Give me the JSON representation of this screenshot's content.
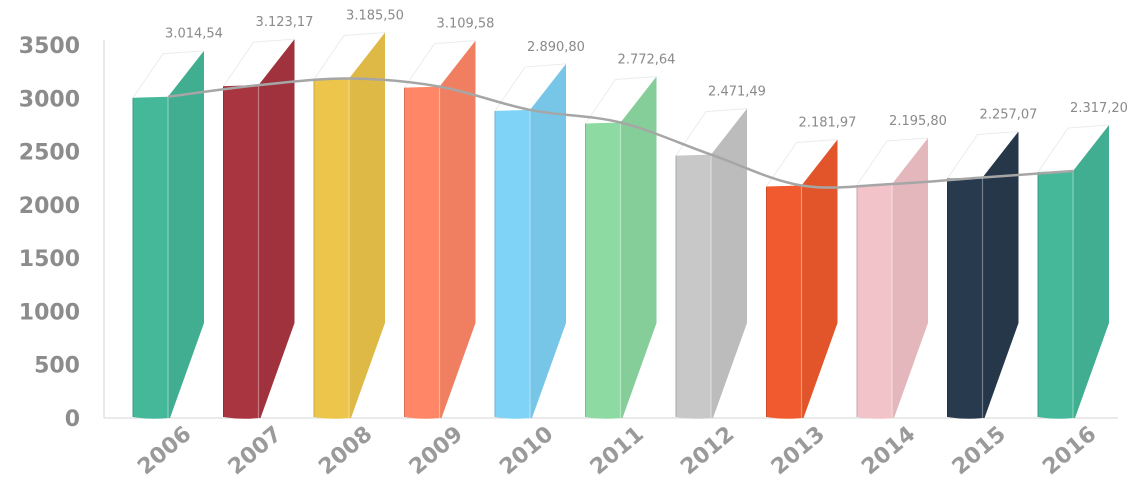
{
  "chart_data": {
    "type": "bar",
    "categories": [
      "2006",
      "2007",
      "2008",
      "2009",
      "2010",
      "2011",
      "2012",
      "2013",
      "2014",
      "2015",
      "2016"
    ],
    "values": [
      3014.54,
      3123.17,
      3185.5,
      3109.58,
      2890.8,
      2772.64,
      2471.49,
      2181.97,
      2195.8,
      2257.07,
      2317.2
    ],
    "data_labels": [
      "3.014,54",
      "3.123,17",
      "3.185,50",
      "3.109,58",
      "2.890,80",
      "2.772,64",
      "2.471,49",
      "2.181,97",
      "2.195,80",
      "2.257,07",
      "2.317,20"
    ],
    "yticks": [
      "0",
      "500",
      "1000",
      "1500",
      "2000",
      "2500",
      "3000",
      "3500"
    ],
    "ylim": [
      0,
      3500
    ],
    "grid": false,
    "legend": "none",
    "trend_line": true,
    "title": "",
    "xlabel": "",
    "ylabel": "",
    "colors": [
      "#45B89A",
      "#A93540",
      "#ECC54A",
      "#FF8767",
      "#7FD3F7",
      "#8DDBA3",
      "#C8C8C8",
      "#F05A2E",
      "#F2C3C8",
      "#283A4E",
      "#45B89A"
    ],
    "line_color": "#a6a6a6",
    "axis_color": "#d4d4d4"
  }
}
